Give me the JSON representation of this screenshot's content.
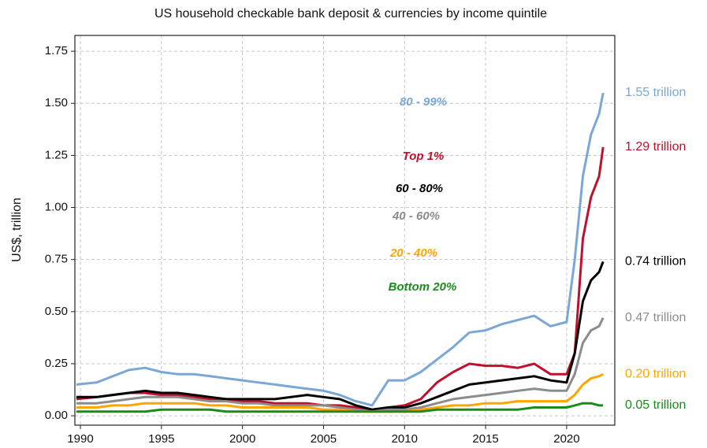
{
  "chart_data": {
    "type": "line",
    "title": "US household checkable bank deposit & currencies by income quintile",
    "y_label": "US$, trillion",
    "x": [
      1989.75,
      1991,
      1992,
      1993,
      1994,
      1995,
      1996,
      1997,
      1998,
      1999,
      2000,
      2001,
      2002,
      2003,
      2004,
      2005,
      2006,
      2007,
      2008,
      2009,
      2010,
      2011,
      2012,
      2013,
      2014,
      2015,
      2016,
      2017,
      2018,
      2019,
      2020,
      2020.5,
      2021,
      2021.5,
      2022,
      2022.25
    ],
    "series": [
      {
        "name": "80 - 99%",
        "color": "#7ba7d7",
        "end_label": "1.55 trillion",
        "values": [
          0.15,
          0.16,
          0.19,
          0.22,
          0.23,
          0.21,
          0.2,
          0.2,
          0.19,
          0.18,
          0.17,
          0.16,
          0.15,
          0.14,
          0.13,
          0.12,
          0.1,
          0.07,
          0.05,
          0.17,
          0.17,
          0.21,
          0.27,
          0.33,
          0.4,
          0.41,
          0.44,
          0.46,
          0.48,
          0.43,
          0.45,
          0.75,
          1.15,
          1.35,
          1.45,
          1.55
        ]
      },
      {
        "name": "Top 1%",
        "color": "#c0102e",
        "end_label": "1.29 trillion",
        "values": [
          0.08,
          0.09,
          0.1,
          0.11,
          0.11,
          0.1,
          0.1,
          0.09,
          0.08,
          0.08,
          0.07,
          0.07,
          0.06,
          0.06,
          0.06,
          0.05,
          0.05,
          0.04,
          0.03,
          0.04,
          0.05,
          0.08,
          0.16,
          0.21,
          0.25,
          0.24,
          0.24,
          0.23,
          0.25,
          0.2,
          0.2,
          0.3,
          0.85,
          1.05,
          1.15,
          1.29
        ]
      },
      {
        "name": "60 - 80%",
        "color": "#000000",
        "end_label": "0.74 trillion",
        "values": [
          0.09,
          0.09,
          0.1,
          0.11,
          0.12,
          0.11,
          0.11,
          0.1,
          0.09,
          0.08,
          0.08,
          0.08,
          0.08,
          0.09,
          0.1,
          0.09,
          0.08,
          0.05,
          0.03,
          0.04,
          0.04,
          0.06,
          0.09,
          0.12,
          0.15,
          0.16,
          0.17,
          0.18,
          0.19,
          0.17,
          0.16,
          0.3,
          0.55,
          0.65,
          0.69,
          0.74
        ]
      },
      {
        "name": "40 - 60%",
        "color": "#8c8c8c",
        "end_label": "0.47 trillion",
        "values": [
          0.06,
          0.06,
          0.07,
          0.08,
          0.09,
          0.09,
          0.09,
          0.08,
          0.07,
          0.07,
          0.06,
          0.06,
          0.05,
          0.05,
          0.05,
          0.05,
          0.04,
          0.03,
          0.02,
          0.03,
          0.03,
          0.04,
          0.06,
          0.08,
          0.09,
          0.1,
          0.11,
          0.12,
          0.13,
          0.12,
          0.12,
          0.2,
          0.35,
          0.41,
          0.43,
          0.47
        ]
      },
      {
        "name": "20 - 40%",
        "color": "#ffa500",
        "end_label": "0.20 trillion",
        "values": [
          0.04,
          0.04,
          0.05,
          0.05,
          0.06,
          0.06,
          0.06,
          0.06,
          0.05,
          0.05,
          0.04,
          0.04,
          0.04,
          0.04,
          0.04,
          0.03,
          0.03,
          0.02,
          0.02,
          0.02,
          0.02,
          0.03,
          0.04,
          0.05,
          0.05,
          0.06,
          0.06,
          0.07,
          0.07,
          0.07,
          0.07,
          0.1,
          0.15,
          0.18,
          0.19,
          0.2
        ]
      },
      {
        "name": "Bottom 20%",
        "color": "#1a8c1a",
        "end_label": "0.05 trillion",
        "values": [
          0.02,
          0.02,
          0.02,
          0.02,
          0.02,
          0.03,
          0.03,
          0.03,
          0.03,
          0.02,
          0.02,
          0.02,
          0.02,
          0.02,
          0.02,
          0.02,
          0.02,
          0.02,
          0.02,
          0.02,
          0.02,
          0.02,
          0.03,
          0.03,
          0.03,
          0.03,
          0.03,
          0.03,
          0.04,
          0.04,
          0.04,
          0.05,
          0.06,
          0.06,
          0.05,
          0.05
        ]
      }
    ],
    "xlim": [
      1989.66,
      2022.97
    ],
    "xticks": [
      1990,
      1995,
      2000,
      2005,
      2010,
      2015,
      2020
    ],
    "ylim": [
      -0.045,
      1.826
    ],
    "yticks": [
      {
        "value": 0,
        "label": "0.00"
      },
      {
        "value": 0.25,
        "label": "0.25"
      },
      {
        "value": 0.5,
        "label": "0.50"
      },
      {
        "value": 0.75,
        "label": "0.75"
      },
      {
        "value": 1,
        "label": "1.00"
      },
      {
        "value": 1.25,
        "label": "1.25"
      },
      {
        "value": 1.5,
        "label": "1.50"
      },
      {
        "value": 1.75,
        "label": "1.75"
      }
    ],
    "grid": true
  }
}
